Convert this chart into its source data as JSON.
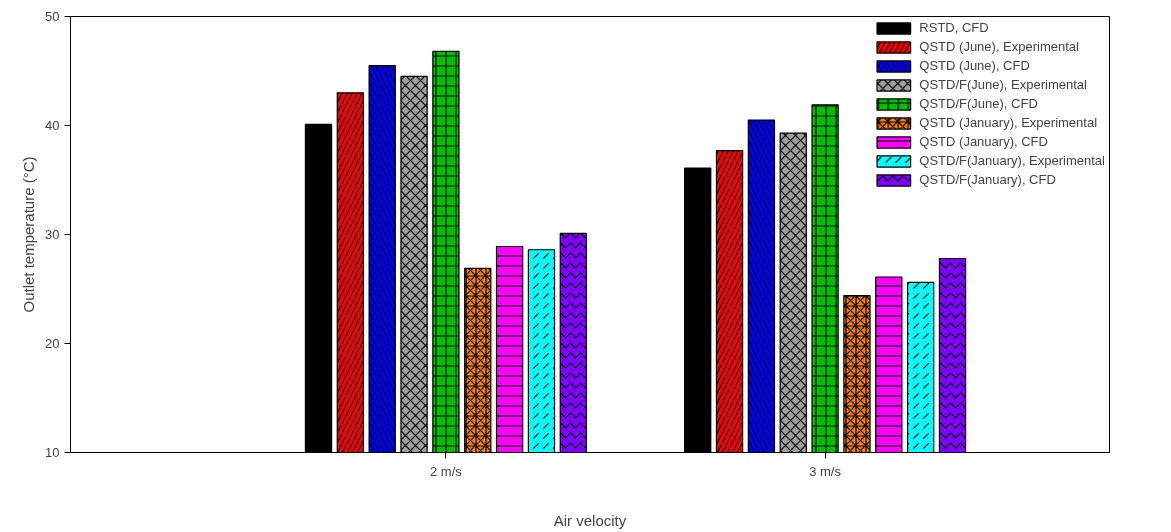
{
  "chart_data": {
    "type": "bar",
    "xlabel": "Air velocity",
    "ylabel": "Outlet temperature (°C)",
    "categories": [
      "2 m/s",
      "3 m/s"
    ],
    "ylim": [
      10,
      50
    ],
    "yticks": [
      10,
      20,
      30,
      40,
      50
    ],
    "grid": false,
    "legend": "top right",
    "series": [
      {
        "name": "RSTD, CFD",
        "color": "#000000",
        "values": [
          40.1,
          36.1
        ]
      },
      {
        "name": "QSTD (June), Experimental",
        "color": "#ff0000",
        "values": [
          43.0,
          37.7
        ]
      },
      {
        "name": "QSTD (June), CFD",
        "color": "#0000ff",
        "values": [
          45.5,
          40.5
        ]
      },
      {
        "name": "QSTD/F(June), Experimental",
        "color": "#a0a0a0",
        "values": [
          44.5,
          39.3
        ]
      },
      {
        "name": "QSTD/F(June), CFD",
        "color": "#00c000",
        "values": [
          46.8,
          41.9
        ]
      },
      {
        "name": "QSTD (January), Experimental",
        "color": "#ff8000",
        "values": [
          26.9,
          24.4
        ]
      },
      {
        "name": "QSTD (January), CFD",
        "color": "#ff00ff",
        "values": [
          28.9,
          26.1
        ]
      },
      {
        "name": "QSTD/F(January), Experimental",
        "color": "#00ffff",
        "values": [
          28.6,
          25.6
        ]
      },
      {
        "name": "QSTD/F(January), CFD",
        "color": "#8000ff",
        "values": [
          30.1,
          27.8
        ]
      }
    ]
  }
}
